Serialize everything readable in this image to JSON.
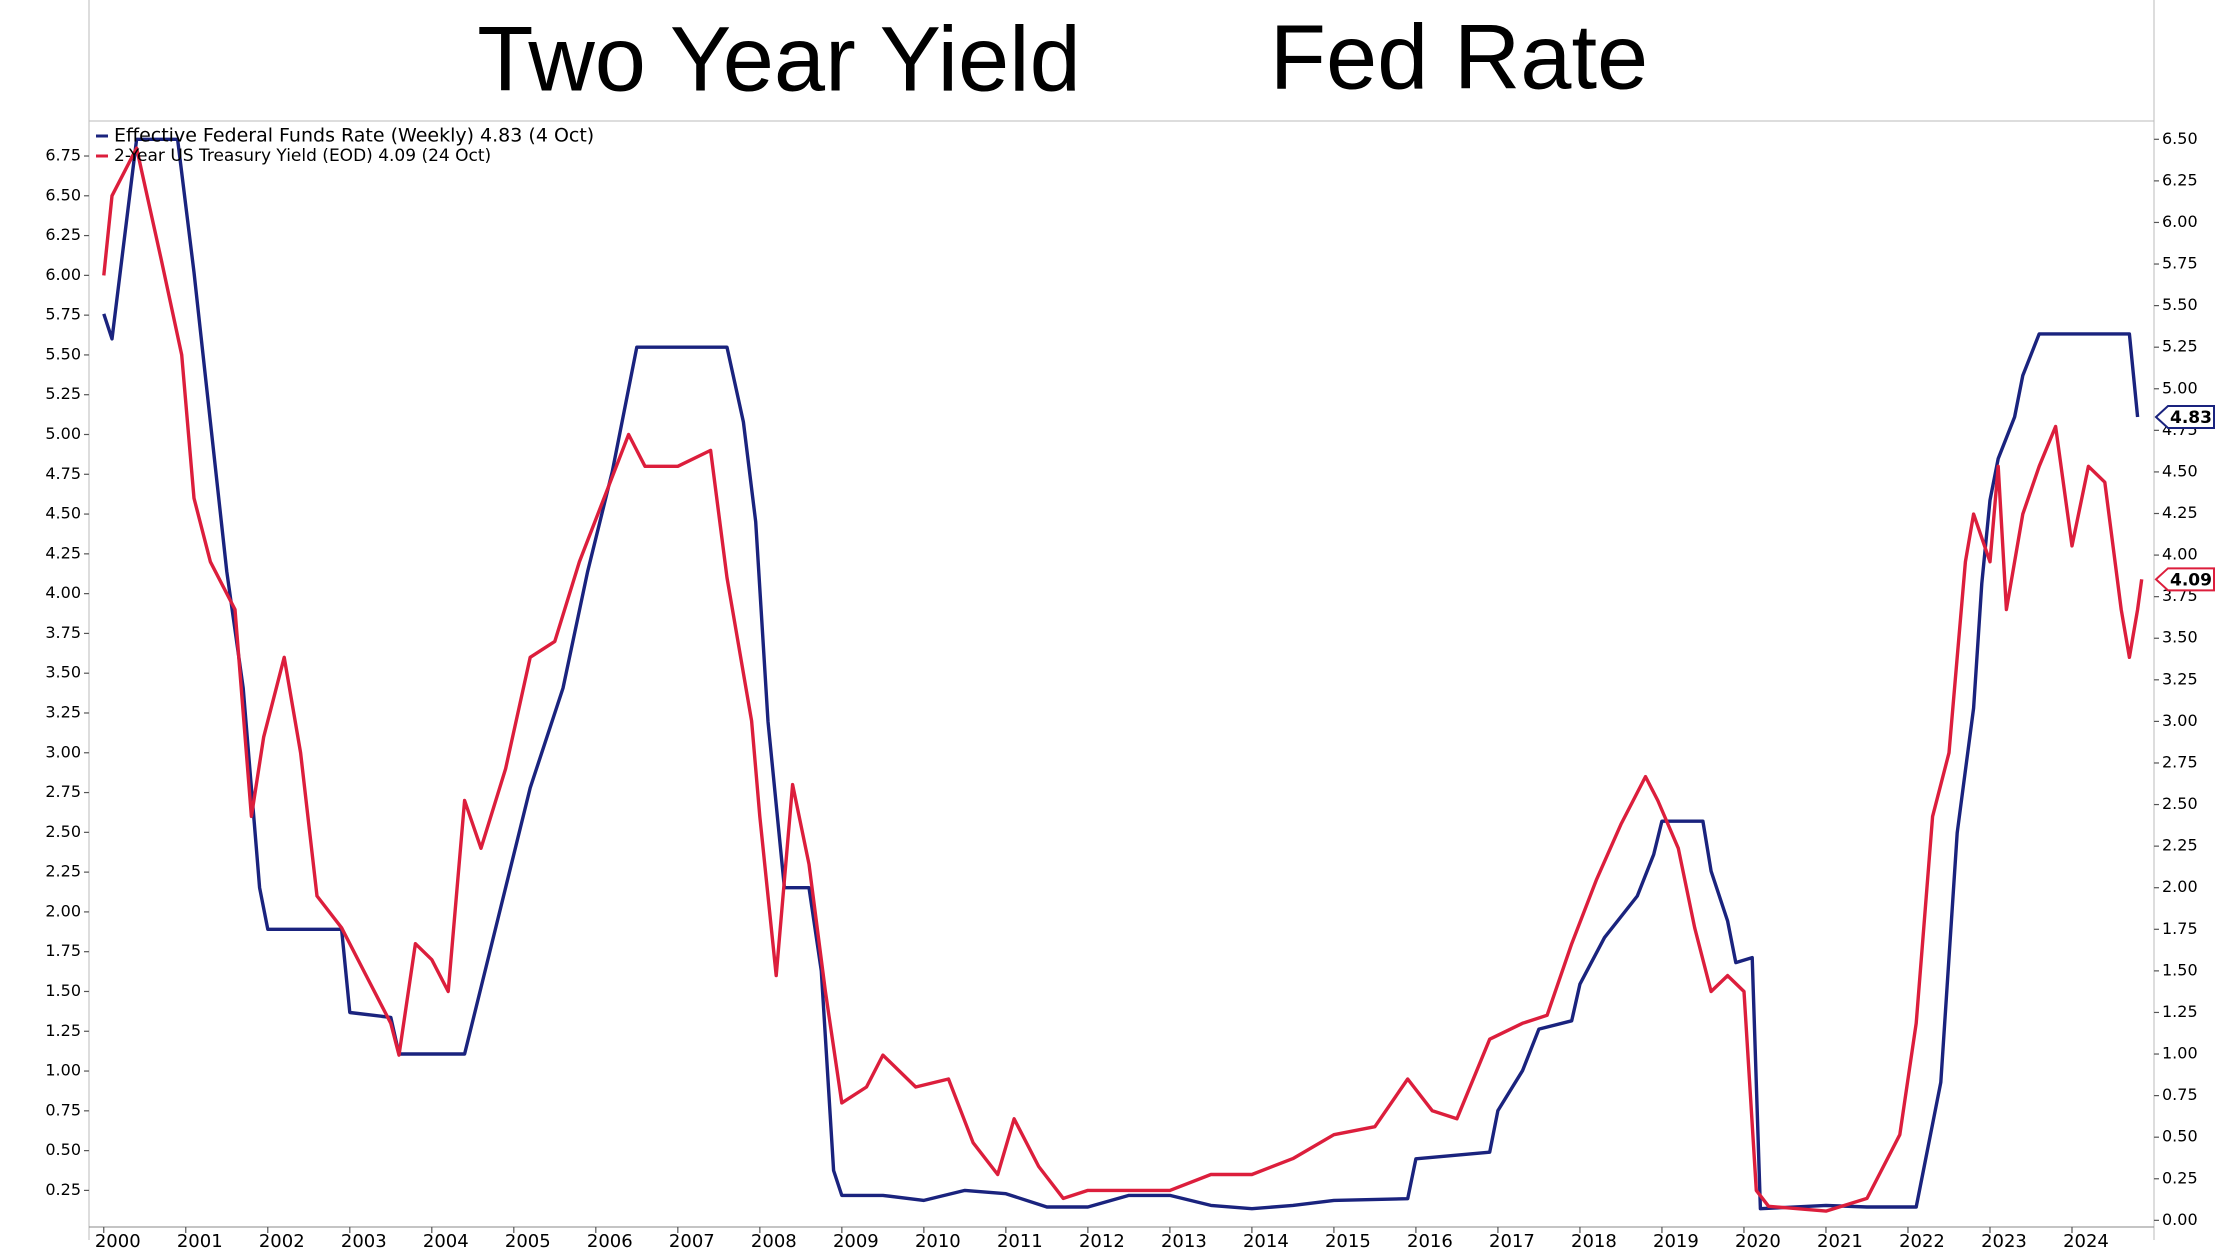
{
  "chart_data": {
    "type": "line",
    "title": "Two Year Yield",
    "title_color": "#e8141c",
    "subtitle": "Fed Rate",
    "subtitle_color": "#1414e6",
    "xlim": [
      1999.82,
      2025.0
    ],
    "xticks": [
      2000,
      2001,
      2002,
      2003,
      2004,
      2005,
      2006,
      2007,
      2008,
      2009,
      2010,
      2011,
      2012,
      2013,
      2014,
      2015,
      2016,
      2017,
      2018,
      2019,
      2020,
      2021,
      2022,
      2023,
      2024
    ],
    "ylim": [
      0.02,
      6.97
    ],
    "yticks": [
      0.25,
      {
        "value": 0.5,
        "label": "0.50"
      },
      0.75,
      {
        "value": 1,
        "label": "1.00"
      },
      1.25,
      {
        "value": 1.5,
        "label": "1.50"
      },
      1.75,
      {
        "value": 2,
        "label": "2.00"
      },
      2.25,
      {
        "value": 2.5,
        "label": "2.50"
      },
      2.75,
      {
        "value": 3,
        "label": "3.00"
      },
      3.25,
      {
        "value": 3.5,
        "label": "3.50"
      },
      3.75,
      {
        "value": 4,
        "label": "4.00"
      },
      4.25,
      {
        "value": 4.5,
        "label": "4.50"
      },
      4.75,
      {
        "value": 5,
        "label": "5.00"
      },
      5.25,
      {
        "value": 5.5,
        "label": "5.50"
      },
      5.75,
      {
        "value": 6,
        "label": "6.00"
      },
      6.25,
      {
        "value": 6.5,
        "label": "6.50"
      },
      6.75
    ],
    "y2lim": [
      -0.04,
      6.61
    ],
    "y2ticks": [
      {
        "value": 0,
        "label": "0.00"
      },
      0.25,
      {
        "value": 0.5,
        "label": "0.50"
      },
      0.75,
      {
        "value": 1,
        "label": "1.00"
      },
      1.25,
      {
        "value": 1.5,
        "label": "1.50"
      },
      1.75,
      {
        "value": 2,
        "label": "2.00"
      },
      2.25,
      {
        "value": 2.5,
        "label": "2.50"
      },
      2.75,
      {
        "value": 3,
        "label": "3.00"
      },
      3.25,
      {
        "value": 3.5,
        "label": "3.50"
      },
      3.75,
      {
        "value": 4,
        "label": "4.00"
      },
      4.25,
      {
        "value": 4.5,
        "label": "4.50"
      },
      4.75,
      {
        "value": 5,
        "label": "5.00"
      },
      5.25,
      {
        "value": 5.5,
        "label": "5.50"
      },
      5.75,
      {
        "value": 6,
        "label": "6.00"
      },
      6.25,
      {
        "value": 6.5,
        "label": "6.50"
      }
    ],
    "grid": false,
    "legend": "upper left",
    "series": [
      {
        "name": "Effective Federal Funds Rate (Weekly) 4.83 (4 Oct)",
        "color": "#1a237e",
        "axis": "y2",
        "last_value": 4.83,
        "x": [
          2000.0,
          2000.1,
          2000.4,
          2000.9,
          2001.1,
          2001.3,
          2001.5,
          2001.7,
          2001.9,
          2002.0,
          2002.9,
          2003.0,
          2003.5,
          2003.6,
          2004.4,
          2004.6,
          2004.9,
          2005.2,
          2005.6,
          2005.9,
          2006.2,
          2006.5,
          2007.6,
          2007.8,
          2007.95,
          2008.1,
          2008.3,
          2008.6,
          2008.75,
          2008.9,
          2009.0,
          2009.5,
          2010.0,
          2010.5,
          2011.0,
          2011.5,
          2012.0,
          2012.5,
          2013.0,
          2013.5,
          2014.0,
          2014.5,
          2015.0,
          2015.9,
          2016.0,
          2016.9,
          2017.0,
          2017.3,
          2017.5,
          2017.9,
          2018.0,
          2018.3,
          2018.7,
          2018.9,
          2019.0,
          2019.5,
          2019.6,
          2019.8,
          2019.9,
          2020.1,
          2020.2,
          2021.0,
          2021.5,
          2022.1,
          2022.2,
          2022.4,
          2022.5,
          2022.6,
          2022.8,
          2022.9,
          2023.0,
          2023.1,
          2023.3,
          2023.4,
          2023.6,
          2024.7,
          2024.8
        ],
        "values": [
          5.45,
          5.3,
          6.5,
          6.5,
          5.7,
          4.8,
          3.9,
          3.2,
          2.0,
          1.75,
          1.75,
          1.25,
          1.22,
          1.0,
          1.0,
          1.4,
          2.0,
          2.6,
          3.2,
          3.9,
          4.5,
          5.25,
          5.25,
          4.8,
          4.2,
          3.0,
          2.0,
          2.0,
          1.5,
          0.3,
          0.15,
          0.15,
          0.12,
          0.18,
          0.16,
          0.08,
          0.08,
          0.15,
          0.15,
          0.09,
          0.07,
          0.09,
          0.12,
          0.13,
          0.37,
          0.41,
          0.66,
          0.9,
          1.15,
          1.2,
          1.42,
          1.7,
          1.95,
          2.2,
          2.4,
          2.4,
          2.1,
          1.8,
          1.55,
          1.58,
          0.07,
          0.09,
          0.08,
          0.08,
          0.33,
          0.83,
          1.58,
          2.33,
          3.08,
          3.83,
          4.33,
          4.58,
          4.83,
          5.08,
          5.33,
          5.33,
          4.83
        ]
      },
      {
        "name": "2-Year US Treasury Yield (EOD) 4.09 (24 Oct)",
        "color": "#dc1e3c",
        "last_value": 4.09,
        "x": [
          2000.0,
          2000.1,
          2000.4,
          2000.7,
          2000.95,
          2001.1,
          2001.3,
          2001.6,
          2001.8,
          2001.95,
          2002.2,
          2002.4,
          2002.6,
          2002.9,
          2003.2,
          2003.5,
          2003.6,
          2003.8,
          2004.0,
          2004.2,
          2004.4,
          2004.6,
          2004.9,
          2005.2,
          2005.5,
          2005.8,
          2006.1,
          2006.4,
          2006.6,
          2007.0,
          2007.4,
          2007.6,
          2007.9,
          2008.0,
          2008.2,
          2008.4,
          2008.6,
          2008.8,
          2009.0,
          2009.3,
          2009.5,
          2009.9,
          2010.3,
          2010.6,
          2010.9,
          2011.1,
          2011.4,
          2011.7,
          2012.0,
          2012.5,
          2013.0,
          2013.5,
          2014.0,
          2014.5,
          2015.0,
          2015.5,
          2015.9,
          2016.2,
          2016.5,
          2016.9,
          2017.3,
          2017.6,
          2017.9,
          2018.2,
          2018.5,
          2018.8,
          2018.95,
          2019.2,
          2019.4,
          2019.6,
          2019.8,
          2020.0,
          2020.15,
          2020.3,
          2021.0,
          2021.5,
          2021.9,
          2022.1,
          2022.3,
          2022.5,
          2022.7,
          2022.8,
          2023.0,
          2023.1,
          2023.2,
          2023.4,
          2023.6,
          2023.8,
          2024.0,
          2024.2,
          2024.4,
          2024.6,
          2024.7,
          2024.8,
          2024.85
        ],
        "values": [
          6.0,
          6.5,
          6.8,
          6.1,
          5.5,
          4.6,
          4.2,
          3.9,
          2.6,
          3.1,
          3.6,
          3.0,
          2.1,
          1.9,
          1.6,
          1.3,
          1.1,
          1.8,
          1.7,
          1.5,
          2.7,
          2.4,
          2.9,
          3.6,
          3.7,
          4.2,
          4.6,
          5.0,
          4.8,
          4.8,
          4.9,
          4.1,
          3.2,
          2.6,
          1.6,
          2.8,
          2.3,
          1.5,
          0.8,
          0.9,
          1.1,
          0.9,
          0.95,
          0.55,
          0.35,
          0.7,
          0.4,
          0.2,
          0.25,
          0.25,
          0.25,
          0.35,
          0.35,
          0.45,
          0.6,
          0.65,
          0.95,
          0.75,
          0.7,
          1.2,
          1.3,
          1.35,
          1.8,
          2.2,
          2.55,
          2.85,
          2.7,
          2.4,
          1.9,
          1.5,
          1.6,
          1.5,
          0.25,
          0.15,
          0.12,
          0.2,
          0.6,
          1.3,
          2.6,
          3.0,
          4.2,
          4.5,
          4.2,
          4.8,
          3.9,
          4.5,
          4.8,
          5.05,
          4.3,
          4.8,
          4.7,
          3.9,
          3.6,
          3.9,
          4.09
        ]
      }
    ]
  }
}
